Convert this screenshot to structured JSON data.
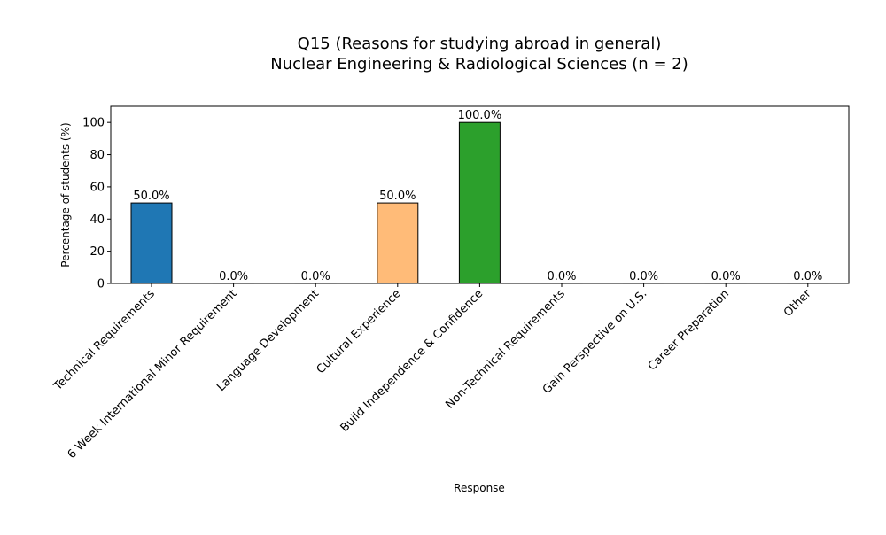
{
  "chart_data": {
    "type": "bar",
    "title": "Q15 (Reasons for studying abroad in general)",
    "subtitle": "Nuclear Engineering & Radiological Sciences (n = 2)",
    "xlabel": "Response",
    "ylabel": "Percentage of students (%)",
    "ylim": [
      0,
      110
    ],
    "yticks": [
      "0",
      "20",
      "40",
      "60",
      "80",
      "100"
    ],
    "grid": false,
    "categories": [
      "Technical Requirements",
      "6 Week International Minor Requirement",
      "Language Development",
      "Cultural Experience",
      "Build Independence & Confidence",
      "Non-Technical Requirements",
      "Gain Perspective on U.S.",
      "Career Preparation",
      "Other"
    ],
    "values": [
      50.0,
      0.0,
      0.0,
      50.0,
      100.0,
      0.0,
      0.0,
      0.0,
      0.0
    ],
    "value_labels": [
      "50.0%",
      "0.0%",
      "0.0%",
      "50.0%",
      "100.0%",
      "0.0%",
      "0.0%",
      "0.0%",
      "0.0%"
    ],
    "colors": [
      "#1f77b4",
      "#ff7f0e",
      "#2ca02c",
      "#ffbb78",
      "#2ca02c",
      "#98df8a",
      "#d62728",
      "#ff9896",
      "#9467bd"
    ]
  }
}
